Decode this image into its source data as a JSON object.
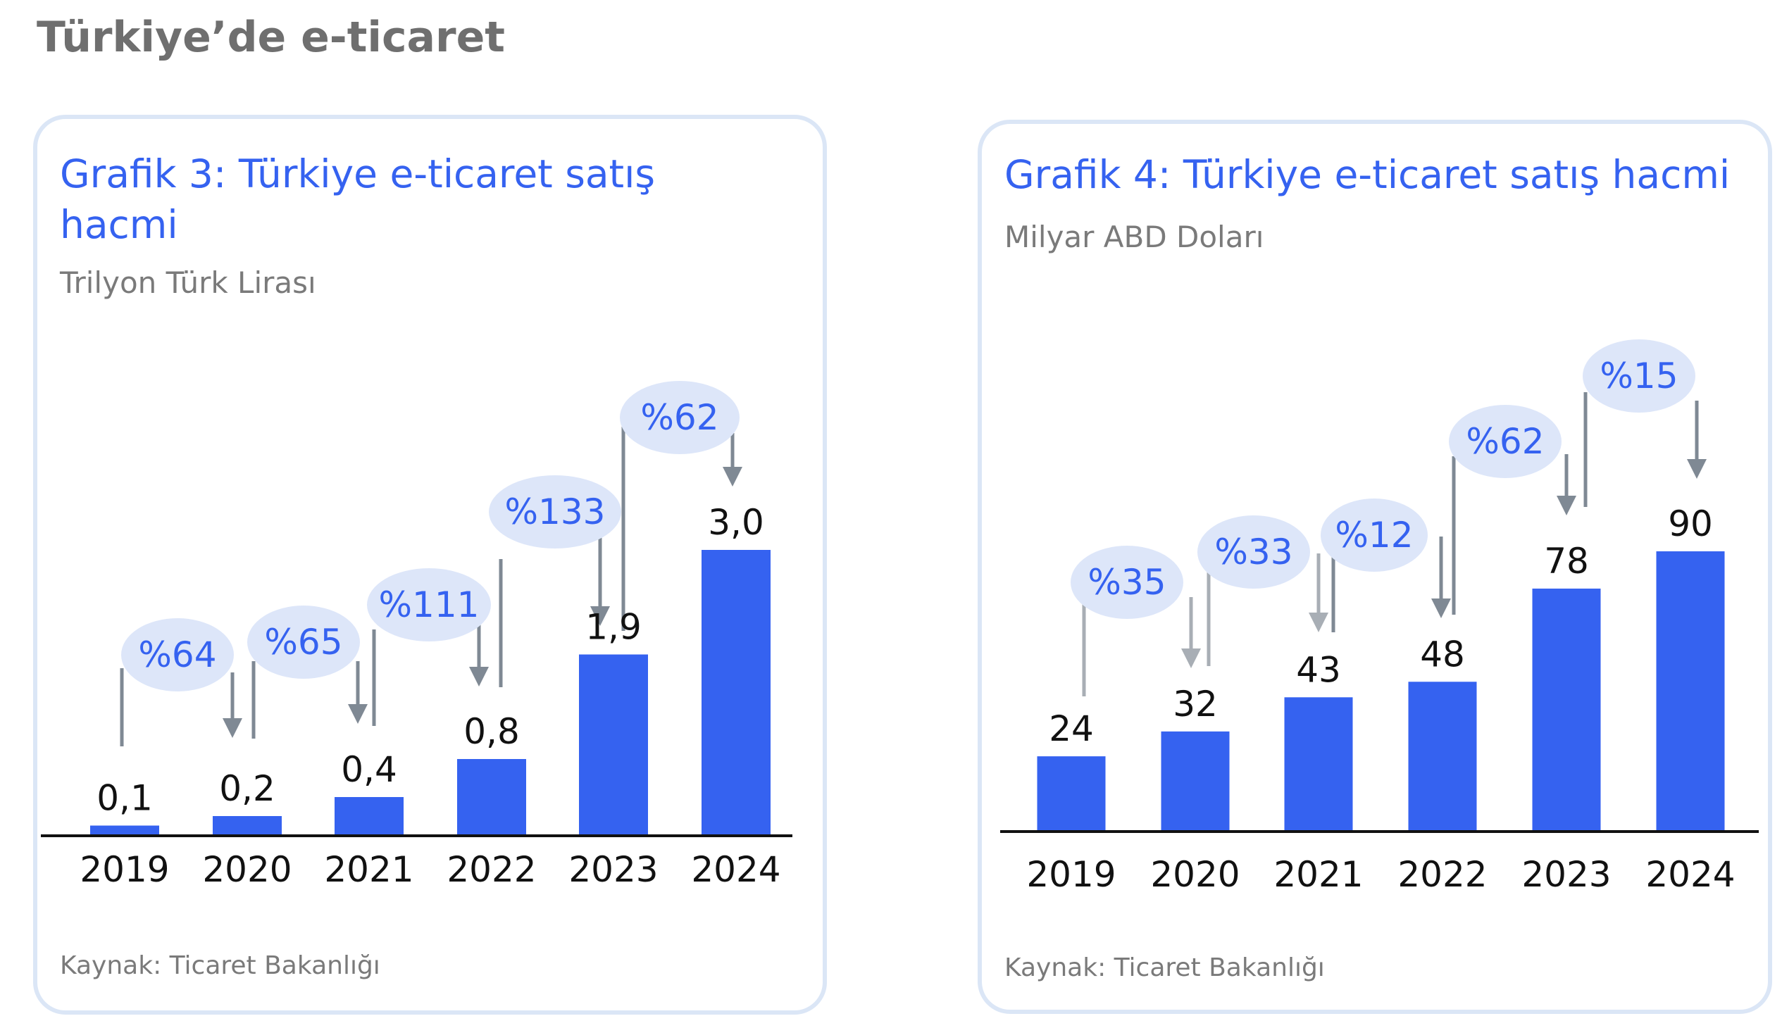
{
  "page": {
    "title": "Türkiye’de e-ticaret"
  },
  "colors": {
    "bar": "#3562f0",
    "accent_text": "#3562f0",
    "bubble": "#dde6f9",
    "arrow": "#7f8994",
    "arrow_light": "#a8aeb5",
    "border": "#dbe6f6"
  },
  "chart_data": [
    {
      "type": "bar",
      "title": "Grafik 3: Türkiye e-ticaret satış hacmi",
      "subtitle": "Trilyon Türk Lirası",
      "source": "Kaynak: Ticaret Bakanlığı",
      "categories": [
        "2019",
        "2020",
        "2021",
        "2022",
        "2023",
        "2024"
      ],
      "values": [
        0.1,
        0.2,
        0.4,
        0.8,
        1.9,
        3.0
      ],
      "value_labels": [
        "0,1",
        "0,2",
        "0,4",
        "0,8",
        "1,9",
        "3,0"
      ],
      "growth_labels": [
        "%64",
        "%65",
        "%111",
        "%133",
        "%62"
      ],
      "ylim": [
        0,
        3.0
      ],
      "grid": false,
      "legend": "none"
    },
    {
      "type": "bar",
      "title": "Grafik 4: Türkiye e-ticaret satış hacmi",
      "subtitle": "Milyar ABD Doları",
      "source": "Kaynak: Ticaret Bakanlığı",
      "categories": [
        "2019",
        "2020",
        "2021",
        "2022",
        "2023",
        "2024"
      ],
      "values": [
        24,
        32,
        43,
        48,
        78,
        90
      ],
      "value_labels": [
        "24",
        "32",
        "43",
        "48",
        "78",
        "90"
      ],
      "growth_labels": [
        "%35",
        "%33",
        "%12",
        "%62",
        "%15"
      ],
      "ylim": [
        0,
        90
      ],
      "grid": false,
      "legend": "none"
    }
  ]
}
